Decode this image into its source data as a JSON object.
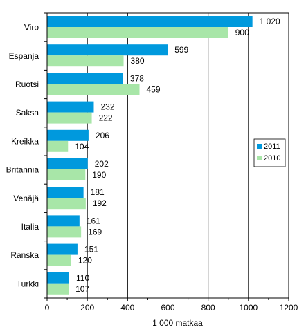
{
  "chart_data": {
    "type": "bar",
    "orientation": "horizontal",
    "categories": [
      "Viro",
      "Espanja",
      "Ruotsi",
      "Saksa",
      "Kreikka",
      "Britannia",
      "Venäjä",
      "Italia",
      "Ranska",
      "Turkki"
    ],
    "series": [
      {
        "name": "2011",
        "values": [
          1020,
          599,
          378,
          232,
          206,
          202,
          181,
          161,
          151,
          110
        ],
        "labels": [
          "1 020",
          "599",
          "378",
          "232",
          "206",
          "202",
          "181",
          "161",
          "151",
          "110"
        ],
        "color": "#0099dd"
      },
      {
        "name": "2010",
        "values": [
          900,
          380,
          459,
          222,
          104,
          190,
          192,
          169,
          120,
          107
        ],
        "labels": [
          "900",
          "380",
          "459",
          "222",
          "104",
          "190",
          "192",
          "169",
          "120",
          "107"
        ],
        "color": "#a8e6a8"
      }
    ],
    "xlabel": "1 000 matkaa",
    "ylabel": "",
    "xlim": [
      0,
      1200
    ],
    "xticks": [
      0,
      200,
      400,
      600,
      800,
      1000,
      1200
    ],
    "grid": "vertical",
    "legend": "right"
  }
}
